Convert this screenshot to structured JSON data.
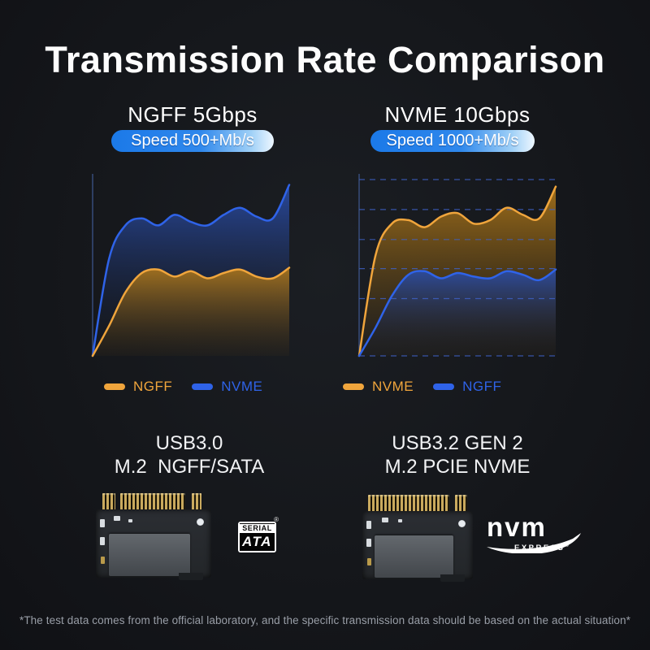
{
  "title": "Transmission Rate Comparison",
  "footer": "*The test data comes from the official laboratory, and the specific transmission data should be based on the actual situation*",
  "colors": {
    "orange": "#f0a53c",
    "blue": "#2f63e8",
    "grid": "#3f62c9",
    "axis": "#44609f",
    "heading_text": "#ffffff",
    "body_text": "#f2f3f5",
    "footer_text": "#999ea7",
    "badge_gradient_start": "#1b79e8",
    "badge_gradient_end": "#eef7ff"
  },
  "columns": [
    {
      "heading": "NGFF 5Gbps",
      "badge": "Speed 500+Mb/s",
      "legend": [
        {
          "label": "NGFF",
          "color": "#f0a53c"
        },
        {
          "label": "NVME",
          "color": "#2f63e8"
        }
      ],
      "interface_lines": {
        "line1": "USB3.0",
        "line2": "M.2  NGFF/SATA"
      },
      "certification_logo": "Serial ATA"
    },
    {
      "heading": "NVME 10Gbps",
      "badge": "Speed 1000+Mb/s",
      "legend": [
        {
          "label": "NVME",
          "color": "#f0a53c"
        },
        {
          "label": "NGFF",
          "color": "#2f63e8"
        }
      ],
      "interface_lines": {
        "line1": "USB3.2 GEN 2",
        "line2": "M.2 PCIE NVME"
      },
      "certification_logo": "NVM Express"
    }
  ],
  "logos": {
    "sata": {
      "word_top": "SERIAL",
      "word_main": "ATA",
      "registered": "®"
    },
    "nvme": {
      "word_main": "nvm",
      "word_sub": "EXPRESS",
      "registered": "®"
    }
  },
  "chart_data": [
    {
      "type": "area",
      "title": "NGFF 5Gbps — Speed 500+Mb/s",
      "xlabel": "",
      "ylabel": "",
      "x": [
        0,
        1,
        2,
        3,
        4,
        5,
        6,
        7,
        8,
        9,
        10,
        11,
        12
      ],
      "ylim": [
        0,
        100
      ],
      "units": "relative speed, % of plot height (chart has no numeric tick labels)",
      "legend_position": "bottom",
      "series": [
        {
          "name": "NVME",
          "color": "#2f63e8",
          "fill_top": "rgba(42,77,168,0.92)",
          "fill_bottom": "rgba(20,26,40,0.08)",
          "values": [
            0,
            55,
            74,
            78,
            74,
            80,
            76,
            74,
            80,
            84,
            79,
            78,
            97
          ]
        },
        {
          "name": "NGFF",
          "color": "#f0a53c",
          "fill_top": "rgba(178,122,26,0.88)",
          "fill_bottom": "rgba(90,62,14,0.10)",
          "values": [
            0,
            17,
            36,
            47,
            49,
            45,
            48,
            44,
            47,
            49,
            45,
            44,
            50
          ]
        }
      ],
      "layout": {
        "gridlines": false,
        "axis_line": true,
        "gridline_values": []
      }
    },
    {
      "type": "area",
      "title": "NVME 10Gbps — Speed 1000+Mb/s",
      "xlabel": "",
      "ylabel": "",
      "x": [
        0,
        1,
        2,
        3,
        4,
        5,
        6,
        7,
        8,
        9,
        10,
        11,
        12
      ],
      "ylim": [
        0,
        100
      ],
      "units": "relative speed, % of plot height (chart has no numeric tick labels)",
      "legend_position": "bottom",
      "series": [
        {
          "name": "NVME",
          "color": "#f0a53c",
          "fill_top": "rgba(178,122,26,0.88)",
          "fill_bottom": "rgba(90,62,14,0.10)",
          "values": [
            0,
            57,
            75,
            77,
            73,
            79,
            81,
            75,
            77,
            84,
            80,
            78,
            96
          ]
        },
        {
          "name": "NGFF",
          "color": "#2f63e8",
          "fill_top": "rgba(42,77,168,0.92)",
          "fill_bottom": "rgba(20,26,40,0.08)",
          "values": [
            0,
            16,
            34,
            46,
            48,
            44,
            47,
            45,
            44,
            48,
            46,
            43,
            49
          ]
        }
      ],
      "layout": {
        "gridlines": true,
        "axis_line": true,
        "gridline_values": [
          100,
          83,
          66,
          49.5,
          32.5,
          0
        ]
      }
    }
  ]
}
